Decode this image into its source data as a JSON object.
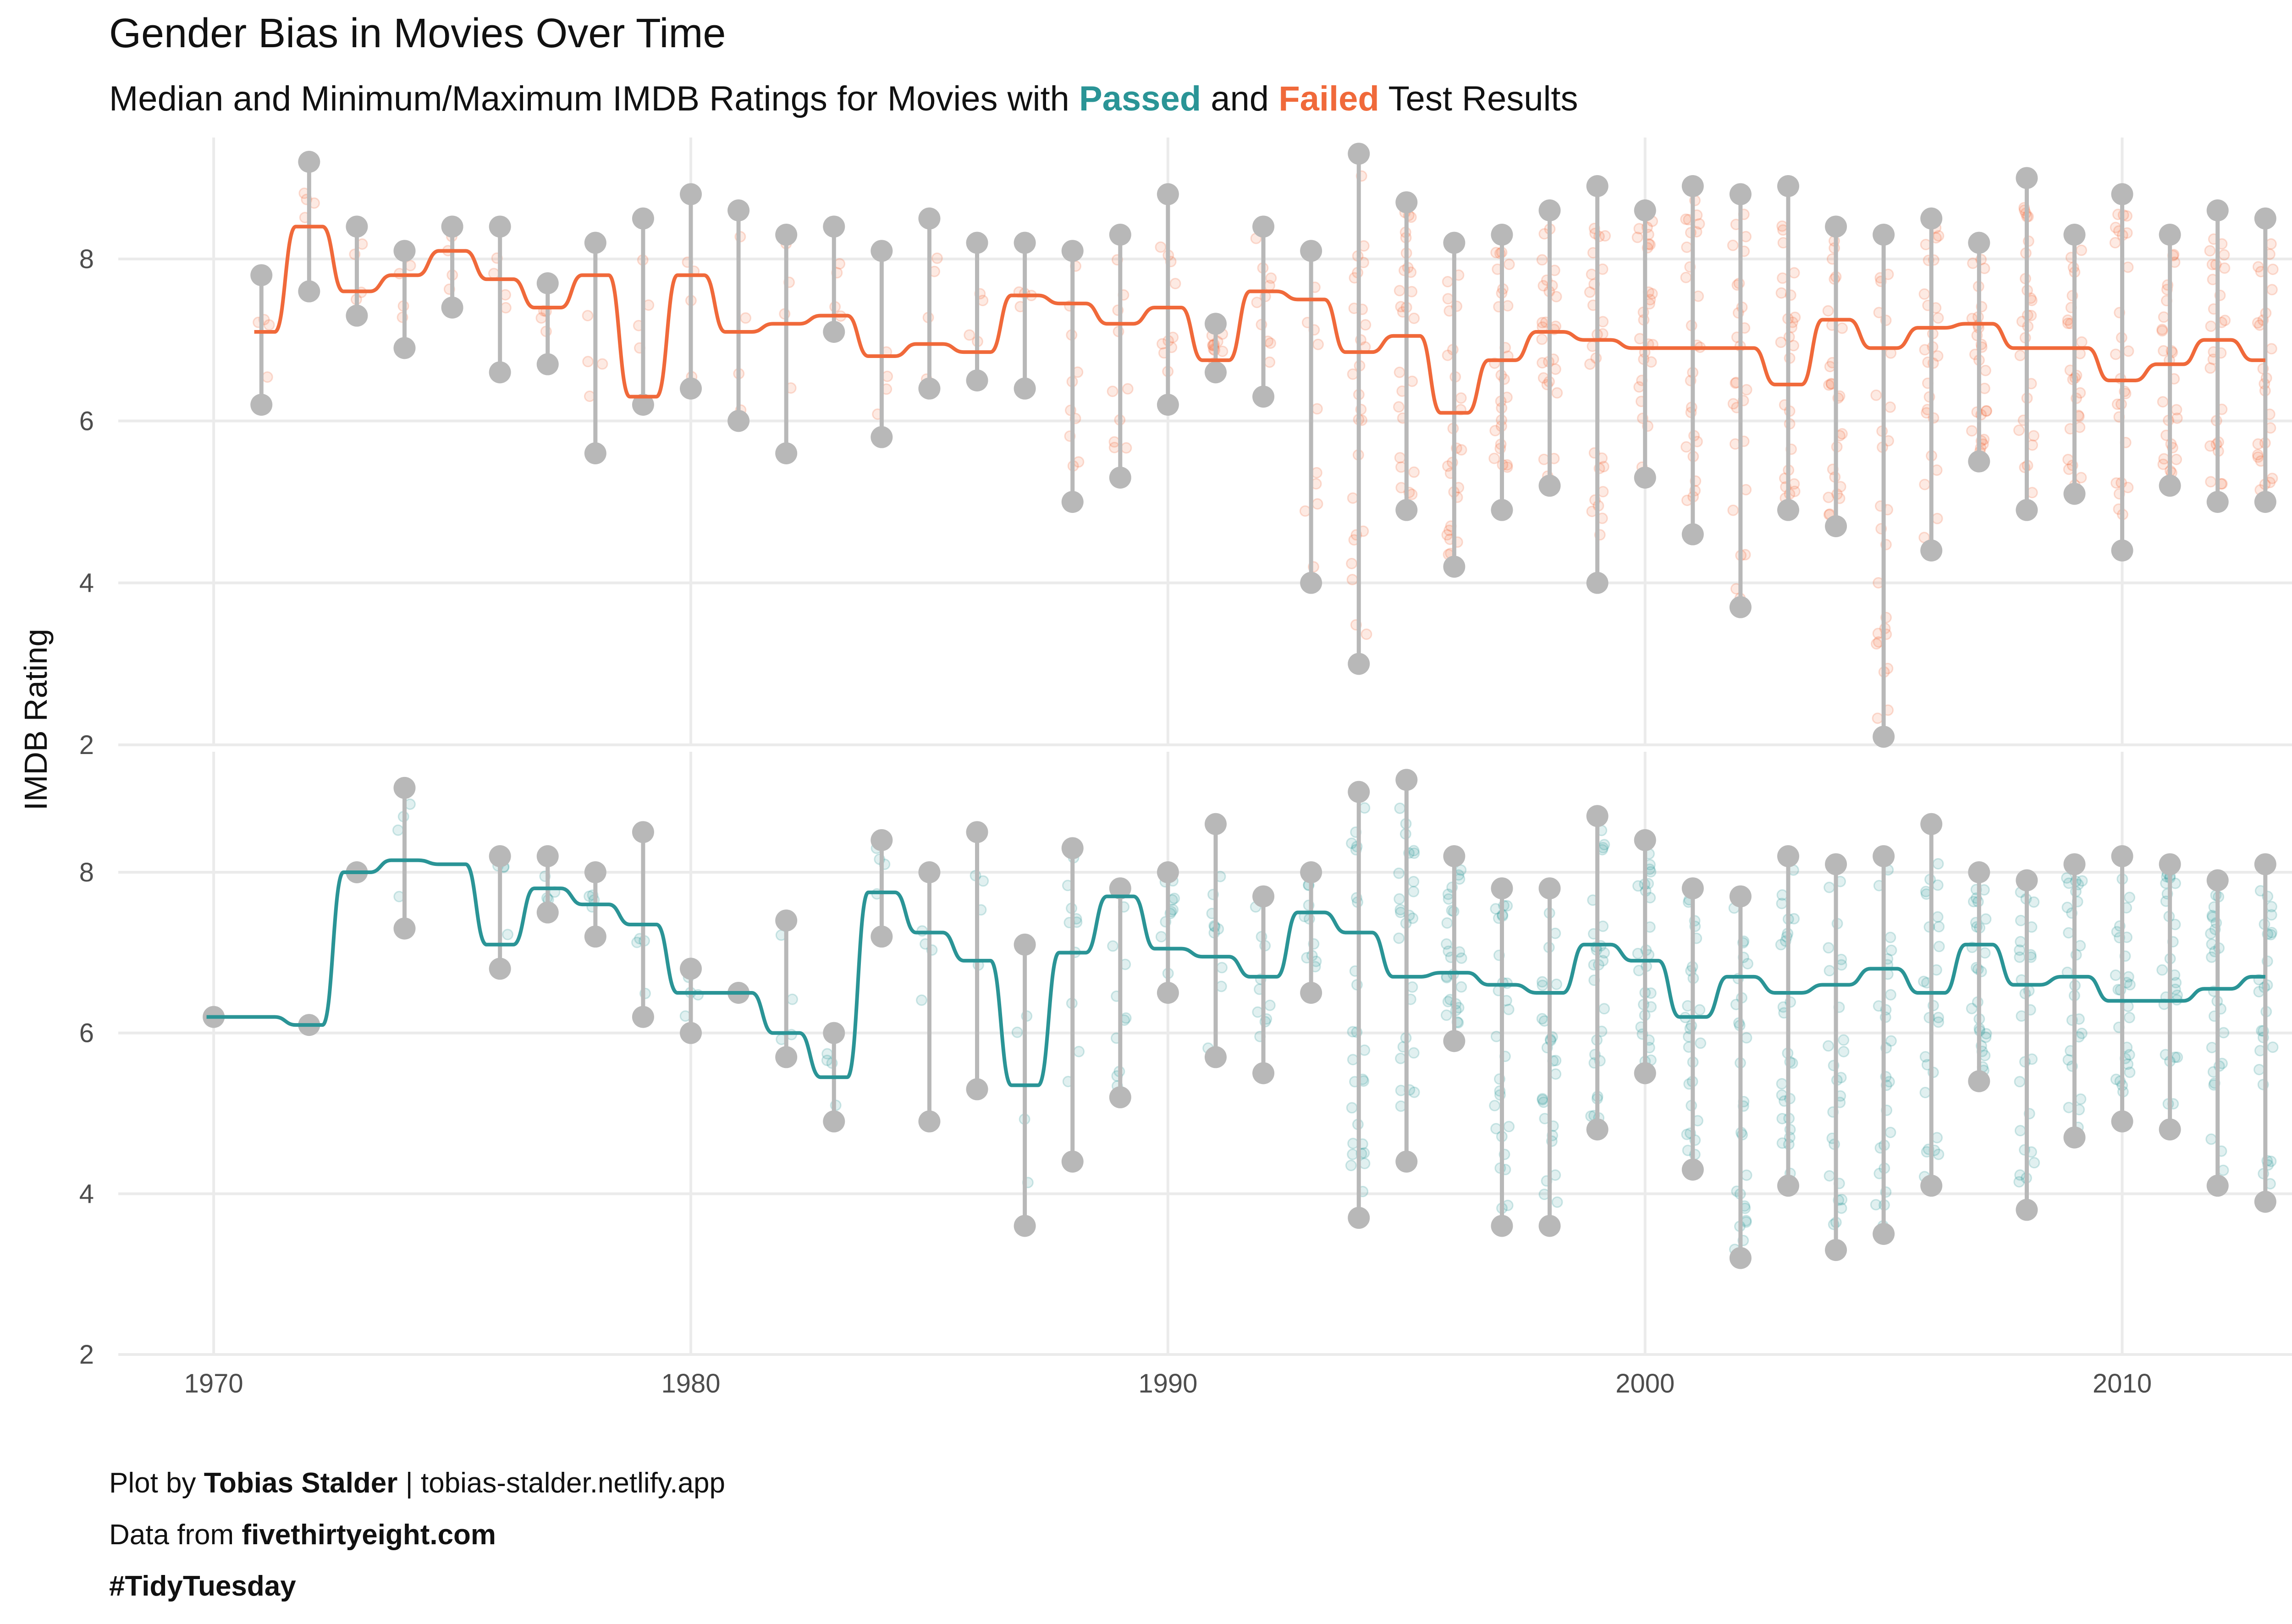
{
  "title": "Gender Bias in Movies Over Time",
  "subtitle": {
    "prefix": "Median and Minimum/Maximum IMDB Ratings for Movies with ",
    "passed": "Passed",
    "middle": " and ",
    "failed": "Failed",
    "suffix": " Test Results"
  },
  "caption": {
    "line1_prefix": "Plot by ",
    "line1_author": "Tobias Stalder",
    "line1_suffix": " | tobias-stalder.netlify.app",
    "line2_prefix": "Data from ",
    "line2_source": "fivethirtyeight.com",
    "line3": "#TidyTuesday"
  },
  "colors": {
    "passed": "#2a9496",
    "failed": "#f0693a",
    "range": "#b8b8b8",
    "grid": "#ebebeb"
  },
  "chart_data": {
    "type": "scatter",
    "xlabel": "",
    "ylabel": "IMDB Rating",
    "xlim": [
      1968,
      2015
    ],
    "ylim": [
      2,
      9.5
    ],
    "x_ticks": [
      1970,
      1980,
      1990,
      2000,
      2010
    ],
    "y_ticks": [
      2,
      4,
      6,
      8
    ],
    "facets": [
      {
        "name": "Failed",
        "range": [
          {
            "year": 1971,
            "min": 6.2,
            "max": 7.8
          },
          {
            "year": 1972,
            "min": 7.6,
            "max": 9.2
          },
          {
            "year": 1973,
            "min": 7.3,
            "max": 8.4
          },
          {
            "year": 1974,
            "min": 6.9,
            "max": 8.1
          },
          {
            "year": 1975,
            "min": 7.4,
            "max": 8.4
          },
          {
            "year": 1976,
            "min": 6.6,
            "max": 8.4
          },
          {
            "year": 1977,
            "min": 6.7,
            "max": 7.7
          },
          {
            "year": 1978,
            "min": 5.6,
            "max": 8.2
          },
          {
            "year": 1979,
            "min": 6.2,
            "max": 8.5
          },
          {
            "year": 1980,
            "min": 6.4,
            "max": 8.8
          },
          {
            "year": 1981,
            "min": 6.0,
            "max": 8.6
          },
          {
            "year": 1982,
            "min": 5.6,
            "max": 8.3
          },
          {
            "year": 1983,
            "min": 7.1,
            "max": 8.4
          },
          {
            "year": 1984,
            "min": 5.8,
            "max": 8.1
          },
          {
            "year": 1985,
            "min": 6.4,
            "max": 8.5
          },
          {
            "year": 1986,
            "min": 6.5,
            "max": 8.2
          },
          {
            "year": 1987,
            "min": 6.4,
            "max": 8.2
          },
          {
            "year": 1988,
            "min": 5.0,
            "max": 8.1
          },
          {
            "year": 1989,
            "min": 5.3,
            "max": 8.3
          },
          {
            "year": 1990,
            "min": 6.2,
            "max": 8.8
          },
          {
            "year": 1991,
            "min": 6.6,
            "max": 7.2
          },
          {
            "year": 1992,
            "min": 6.3,
            "max": 8.4
          },
          {
            "year": 1993,
            "min": 4.0,
            "max": 8.1
          },
          {
            "year": 1994,
            "min": 3.0,
            "max": 9.3
          },
          {
            "year": 1995,
            "min": 4.9,
            "max": 8.7
          },
          {
            "year": 1996,
            "min": 4.2,
            "max": 8.2
          },
          {
            "year": 1997,
            "min": 4.9,
            "max": 8.3
          },
          {
            "year": 1998,
            "min": 5.2,
            "max": 8.6
          },
          {
            "year": 1999,
            "min": 4.0,
            "max": 8.9
          },
          {
            "year": 2000,
            "min": 5.3,
            "max": 8.6
          },
          {
            "year": 2001,
            "min": 4.6,
            "max": 8.9
          },
          {
            "year": 2002,
            "min": 3.7,
            "max": 8.8
          },
          {
            "year": 2003,
            "min": 4.9,
            "max": 8.9
          },
          {
            "year": 2004,
            "min": 4.7,
            "max": 8.4
          },
          {
            "year": 2005,
            "min": 2.1,
            "max": 8.3
          },
          {
            "year": 2006,
            "min": 4.4,
            "max": 8.5
          },
          {
            "year": 2007,
            "min": 5.5,
            "max": 8.2
          },
          {
            "year": 2008,
            "min": 4.9,
            "max": 9.0
          },
          {
            "year": 2009,
            "min": 5.1,
            "max": 8.3
          },
          {
            "year": 2010,
            "min": 4.4,
            "max": 8.8
          },
          {
            "year": 2011,
            "min": 5.2,
            "max": 8.3
          },
          {
            "year": 2012,
            "min": 5.0,
            "max": 8.6
          },
          {
            "year": 2013,
            "min": 5.0,
            "max": 8.5
          }
        ],
        "median": [
          {
            "year": 1971,
            "value": 7.1
          },
          {
            "year": 1972,
            "value": 8.4
          },
          {
            "year": 1973,
            "value": 7.6
          },
          {
            "year": 1974,
            "value": 7.8
          },
          {
            "year": 1975,
            "value": 8.1
          },
          {
            "year": 1976,
            "value": 7.75
          },
          {
            "year": 1977,
            "value": 7.4
          },
          {
            "year": 1978,
            "value": 7.8
          },
          {
            "year": 1979,
            "value": 6.3
          },
          {
            "year": 1980,
            "value": 7.8
          },
          {
            "year": 1981,
            "value": 7.1
          },
          {
            "year": 1982,
            "value": 7.2
          },
          {
            "year": 1983,
            "value": 7.3
          },
          {
            "year": 1984,
            "value": 6.8
          },
          {
            "year": 1985,
            "value": 6.95
          },
          {
            "year": 1986,
            "value": 6.85
          },
          {
            "year": 1987,
            "value": 7.55
          },
          {
            "year": 1988,
            "value": 7.45
          },
          {
            "year": 1989,
            "value": 7.2
          },
          {
            "year": 1990,
            "value": 7.4
          },
          {
            "year": 1991,
            "value": 6.75
          },
          {
            "year": 1992,
            "value": 7.6
          },
          {
            "year": 1993,
            "value": 7.5
          },
          {
            "year": 1994,
            "value": 6.85
          },
          {
            "year": 1995,
            "value": 7.05
          },
          {
            "year": 1996,
            "value": 6.1
          },
          {
            "year": 1997,
            "value": 6.75
          },
          {
            "year": 1998,
            "value": 7.1
          },
          {
            "year": 1999,
            "value": 7.0
          },
          {
            "year": 2000,
            "value": 6.9
          },
          {
            "year": 2001,
            "value": 6.9
          },
          {
            "year": 2002,
            "value": 6.9
          },
          {
            "year": 2003,
            "value": 6.45
          },
          {
            "year": 2004,
            "value": 7.25
          },
          {
            "year": 2005,
            "value": 6.9
          },
          {
            "year": 2006,
            "value": 7.15
          },
          {
            "year": 2007,
            "value": 7.2
          },
          {
            "year": 2008,
            "value": 6.9
          },
          {
            "year": 2009,
            "value": 6.9
          },
          {
            "year": 2010,
            "value": 6.5
          },
          {
            "year": 2011,
            "value": 6.7
          },
          {
            "year": 2012,
            "value": 7.0
          },
          {
            "year": 2013,
            "value": 6.75
          }
        ]
      },
      {
        "name": "Passed",
        "range": [
          {
            "year": 1970,
            "min": 6.2,
            "max": 6.2
          },
          {
            "year": 1972,
            "min": 6.1,
            "max": 6.1
          },
          {
            "year": 1973,
            "min": 8.0,
            "max": 8.0
          },
          {
            "year": 1974,
            "min": 7.3,
            "max": 9.05
          },
          {
            "year": 1976,
            "min": 6.8,
            "max": 8.2
          },
          {
            "year": 1977,
            "min": 7.5,
            "max": 8.2
          },
          {
            "year": 1978,
            "min": 7.2,
            "max": 8.0
          },
          {
            "year": 1979,
            "min": 6.2,
            "max": 8.5
          },
          {
            "year": 1980,
            "min": 6.0,
            "max": 6.8
          },
          {
            "year": 1981,
            "min": 6.5,
            "max": 6.5
          },
          {
            "year": 1982,
            "min": 5.7,
            "max": 7.4
          },
          {
            "year": 1983,
            "min": 4.9,
            "max": 6.0
          },
          {
            "year": 1984,
            "min": 7.2,
            "max": 8.4
          },
          {
            "year": 1985,
            "min": 4.9,
            "max": 8.0
          },
          {
            "year": 1986,
            "min": 5.3,
            "max": 8.5
          },
          {
            "year": 1987,
            "min": 3.6,
            "max": 7.1
          },
          {
            "year": 1988,
            "min": 4.4,
            "max": 8.3
          },
          {
            "year": 1989,
            "min": 5.2,
            "max": 7.8
          },
          {
            "year": 1990,
            "min": 6.5,
            "max": 8.0
          },
          {
            "year": 1991,
            "min": 5.7,
            "max": 8.6
          },
          {
            "year": 1992,
            "min": 5.5,
            "max": 7.7
          },
          {
            "year": 1993,
            "min": 6.5,
            "max": 8.0
          },
          {
            "year": 1994,
            "min": 3.7,
            "max": 9.0
          },
          {
            "year": 1995,
            "min": 4.4,
            "max": 9.15
          },
          {
            "year": 1996,
            "min": 5.9,
            "max": 8.2
          },
          {
            "year": 1997,
            "min": 3.6,
            "max": 7.8
          },
          {
            "year": 1998,
            "min": 3.6,
            "max": 7.8
          },
          {
            "year": 1999,
            "min": 4.8,
            "max": 8.7
          },
          {
            "year": 2000,
            "min": 5.5,
            "max": 8.4
          },
          {
            "year": 2001,
            "min": 4.3,
            "max": 7.8
          },
          {
            "year": 2002,
            "min": 3.2,
            "max": 7.7
          },
          {
            "year": 2003,
            "min": 4.1,
            "max": 8.2
          },
          {
            "year": 2004,
            "min": 3.3,
            "max": 8.1
          },
          {
            "year": 2005,
            "min": 3.5,
            "max": 8.2
          },
          {
            "year": 2006,
            "min": 4.1,
            "max": 8.6
          },
          {
            "year": 2007,
            "min": 5.4,
            "max": 8.0
          },
          {
            "year": 2008,
            "min": 3.8,
            "max": 7.9
          },
          {
            "year": 2009,
            "min": 4.7,
            "max": 8.1
          },
          {
            "year": 2010,
            "min": 4.9,
            "max": 8.2
          },
          {
            "year": 2011,
            "min": 4.8,
            "max": 8.1
          },
          {
            "year": 2012,
            "min": 4.1,
            "max": 7.9
          },
          {
            "year": 2013,
            "min": 3.9,
            "max": 8.1
          }
        ],
        "median": [
          {
            "year": 1970,
            "value": 6.2
          },
          {
            "year": 1971,
            "value": 6.2
          },
          {
            "year": 1972,
            "value": 6.1
          },
          {
            "year": 1973,
            "value": 8.0
          },
          {
            "year": 1974,
            "value": 8.15
          },
          {
            "year": 1975,
            "value": 8.1
          },
          {
            "year": 1976,
            "value": 7.1
          },
          {
            "year": 1977,
            "value": 7.8
          },
          {
            "year": 1978,
            "value": 7.6
          },
          {
            "year": 1979,
            "value": 7.35
          },
          {
            "year": 1980,
            "value": 6.5
          },
          {
            "year": 1981,
            "value": 6.5
          },
          {
            "year": 1982,
            "value": 6.0
          },
          {
            "year": 1983,
            "value": 5.45
          },
          {
            "year": 1984,
            "value": 7.75
          },
          {
            "year": 1985,
            "value": 7.25
          },
          {
            "year": 1986,
            "value": 6.9
          },
          {
            "year": 1987,
            "value": 5.35
          },
          {
            "year": 1988,
            "value": 7.0
          },
          {
            "year": 1989,
            "value": 7.7
          },
          {
            "year": 1990,
            "value": 7.05
          },
          {
            "year": 1991,
            "value": 6.95
          },
          {
            "year": 1992,
            "value": 6.7
          },
          {
            "year": 1993,
            "value": 7.5
          },
          {
            "year": 1994,
            "value": 7.25
          },
          {
            "year": 1995,
            "value": 6.7
          },
          {
            "year": 1996,
            "value": 6.75
          },
          {
            "year": 1997,
            "value": 6.6
          },
          {
            "year": 1998,
            "value": 6.5
          },
          {
            "year": 1999,
            "value": 7.1
          },
          {
            "year": 2000,
            "value": 6.9
          },
          {
            "year": 2001,
            "value": 6.2
          },
          {
            "year": 2002,
            "value": 6.7
          },
          {
            "year": 2003,
            "value": 6.5
          },
          {
            "year": 2004,
            "value": 6.6
          },
          {
            "year": 2005,
            "value": 6.8
          },
          {
            "year": 2006,
            "value": 6.5
          },
          {
            "year": 2007,
            "value": 7.1
          },
          {
            "year": 2008,
            "value": 6.6
          },
          {
            "year": 2009,
            "value": 6.7
          },
          {
            "year": 2010,
            "value": 6.4
          },
          {
            "year": 2011,
            "value": 6.4
          },
          {
            "year": 2012,
            "value": 6.55
          },
          {
            "year": 2013,
            "value": 6.7
          }
        ]
      }
    ]
  }
}
